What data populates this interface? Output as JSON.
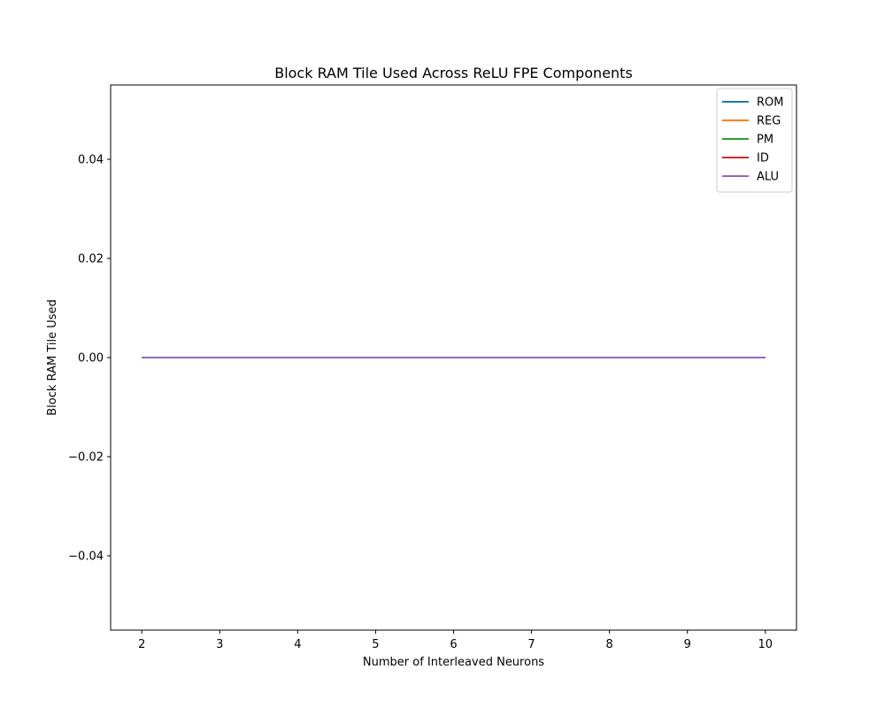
{
  "chart_data": {
    "type": "line",
    "title": "Block RAM Tile Used Across ReLU FPE Components",
    "xlabel": "Number of Interleaved Neurons",
    "ylabel": "Block RAM Tile Used",
    "x": [
      2,
      3,
      4,
      5,
      6,
      7,
      8,
      9,
      10
    ],
    "xlim": [
      1.6,
      10.4
    ],
    "ylim": [
      -0.055,
      0.055
    ],
    "x_ticks": [
      2,
      3,
      4,
      5,
      6,
      7,
      8,
      9,
      10
    ],
    "x_tick_labels": [
      "2",
      "3",
      "4",
      "5",
      "6",
      "7",
      "8",
      "9",
      "10"
    ],
    "y_ticks": [
      -0.04,
      -0.02,
      0.0,
      0.02,
      0.04
    ],
    "y_tick_labels": [
      "−0.04",
      "−0.02",
      "0.00",
      "0.02",
      "0.04"
    ],
    "grid": false,
    "legend_position": "top-right",
    "series": [
      {
        "name": "ROM",
        "color": "#1f77b4",
        "values": [
          0,
          0,
          0,
          0,
          0,
          0,
          0,
          0,
          0
        ]
      },
      {
        "name": "REG",
        "color": "#ff7f0e",
        "values": [
          0,
          0,
          0,
          0,
          0,
          0,
          0,
          0,
          0
        ]
      },
      {
        "name": "PM",
        "color": "#2ca02c",
        "values": [
          0,
          0,
          0,
          0,
          0,
          0,
          0,
          0,
          0
        ]
      },
      {
        "name": "ID",
        "color": "#d62728",
        "values": [
          0,
          0,
          0,
          0,
          0,
          0,
          0,
          0,
          0
        ]
      },
      {
        "name": "ALU",
        "color": "#9467bd",
        "values": [
          0,
          0,
          0,
          0,
          0,
          0,
          0,
          0,
          0
        ]
      }
    ]
  }
}
